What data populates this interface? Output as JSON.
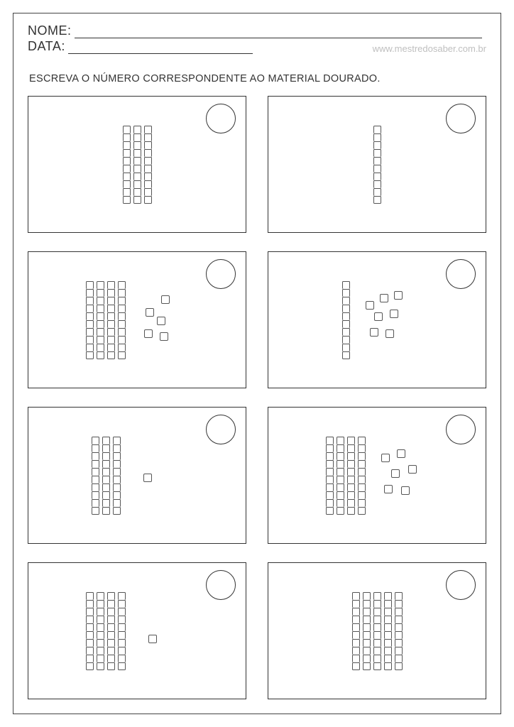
{
  "header": {
    "name_label": "NOME:",
    "date_label": "DATA:",
    "watermark": "www.mestredosaber.com.br"
  },
  "instruction": "ESCREVA O NÚMERO CORRESPONDENTE AO MATERIAL DOURADO.",
  "colors": {
    "stroke": "#333333",
    "light_stroke": "#555555",
    "background": "#ffffff",
    "watermark": "#bfbfbf"
  },
  "cards": [
    {
      "rods": 3,
      "units": 0,
      "unit_positions": []
    },
    {
      "rods": 1,
      "units": 0,
      "unit_positions": []
    },
    {
      "rods": 4,
      "units": 5,
      "unit_positions": [
        [
          20,
          28
        ],
        [
          42,
          10
        ],
        [
          36,
          40
        ],
        [
          18,
          58
        ],
        [
          40,
          62
        ]
      ]
    },
    {
      "rods": 1,
      "units": 7,
      "unit_positions": [
        [
          14,
          18
        ],
        [
          34,
          8
        ],
        [
          54,
          4
        ],
        [
          26,
          34
        ],
        [
          48,
          30
        ],
        [
          20,
          56
        ],
        [
          42,
          58
        ]
      ]
    },
    {
      "rods": 3,
      "units": 1,
      "unit_positions": [
        [
          24,
          42
        ]
      ]
    },
    {
      "rods": 4,
      "units": 6,
      "unit_positions": [
        [
          14,
          14
        ],
        [
          36,
          8
        ],
        [
          28,
          36
        ],
        [
          52,
          30
        ],
        [
          18,
          58
        ],
        [
          42,
          60
        ]
      ]
    },
    {
      "rods": 4,
      "units": 1,
      "unit_positions": [
        [
          24,
          50
        ]
      ]
    },
    {
      "rods": 5,
      "units": 0,
      "unit_positions": []
    }
  ]
}
